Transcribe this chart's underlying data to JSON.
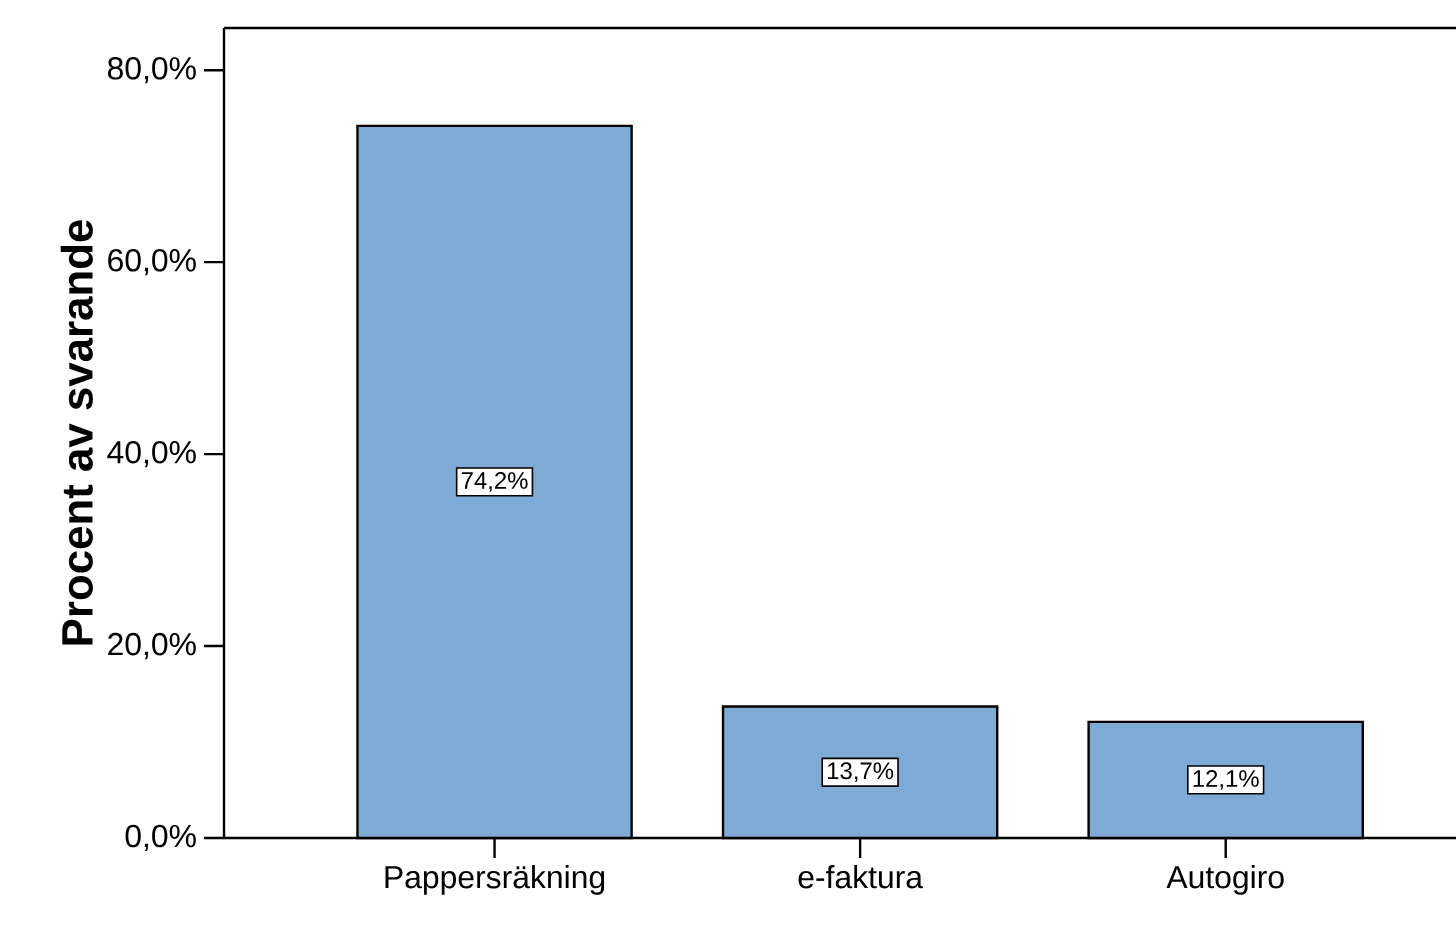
{
  "chart_data": {
    "type": "bar",
    "ylabel": "Procent av svarande",
    "categories": [
      "Pappersräkning",
      "e-faktura",
      "Autogiro"
    ],
    "values": [
      74.2,
      13.7,
      12.1
    ],
    "value_labels": [
      "74,2%",
      "13,7%",
      "12,1%"
    ],
    "color": "#7eaad6",
    "ylim": [
      0,
      84.4
    ],
    "yticks": [
      {
        "value": 0,
        "label": "0,0%"
      },
      {
        "value": 20,
        "label": "20,0%"
      },
      {
        "value": 40,
        "label": "40,0%"
      },
      {
        "value": 60,
        "label": "60,0%"
      },
      {
        "value": 80,
        "label": "80,0%"
      }
    ],
    "grid": false
  }
}
